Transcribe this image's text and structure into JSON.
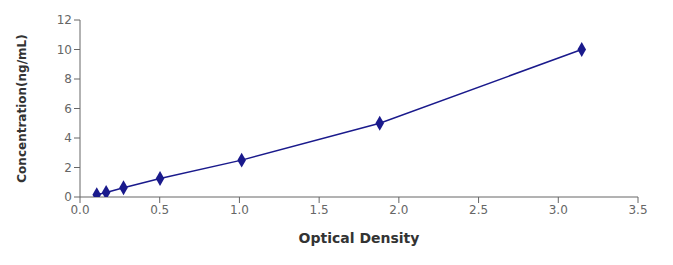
{
  "chart_data": {
    "type": "line",
    "x": [
      0.105,
      0.164,
      0.273,
      0.502,
      1.014,
      1.88,
      3.147
    ],
    "values": [
      0.156,
      0.312,
      0.625,
      1.25,
      2.5,
      5.0,
      10.0
    ],
    "color": "#1a1a8c",
    "marker": "diamond",
    "xlabel": "Optical Density",
    "ylabel": "Concentration(ng/mL)",
    "xlim": [
      0,
      3.5
    ],
    "ylim": [
      0,
      12
    ],
    "xticks": [
      {
        "value": 0,
        "label": "0.0"
      },
      0.5,
      {
        "value": 1.0,
        "label": "1.0"
      },
      1.5,
      {
        "value": 2.0,
        "label": "2.0"
      },
      2.5,
      {
        "value": 3.0,
        "label": "3.0"
      },
      3.5
    ],
    "yticks": [
      0,
      2,
      4,
      6,
      8,
      10,
      12
    ],
    "grid": false
  }
}
